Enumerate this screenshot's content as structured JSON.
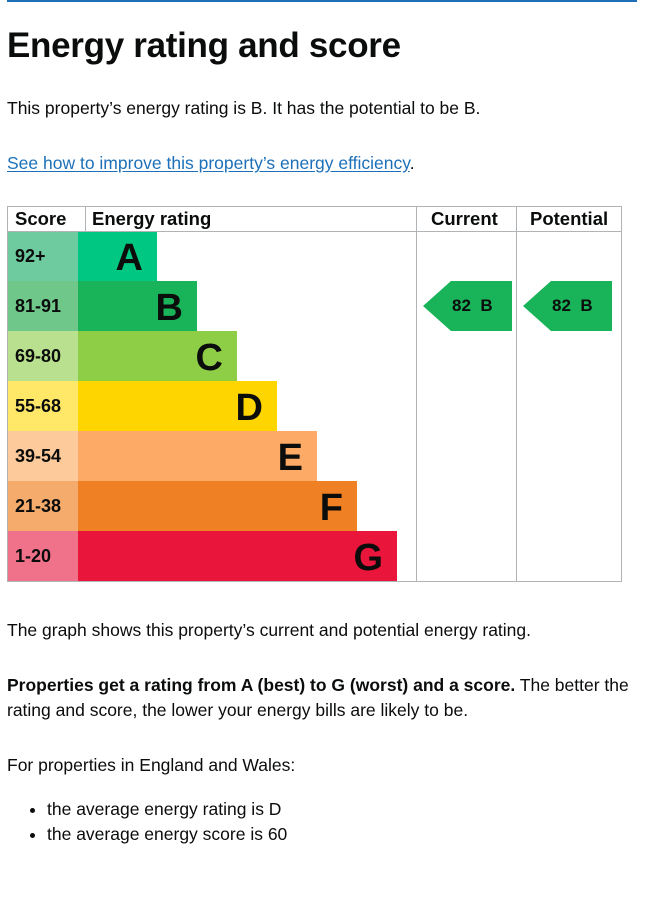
{
  "page": {
    "title": "Energy rating and score",
    "intro": "This property’s energy rating is B. It has the potential to be B.",
    "improve_link": "See how to improve this property’s energy efficiency",
    "improve_link_suffix": ".",
    "graph_note": "The graph shows this property’s current and potential energy rating.",
    "rating_bold": "Properties get a rating from A (best) to G (worst) and a score.",
    "rating_rest": " The better the rating and score, the lower your energy bills are likely to be.",
    "region_intro": "For properties in England and Wales:",
    "facts": [
      "the average energy rating is D",
      "the average energy score is 60"
    ]
  },
  "chart_data": {
    "type": "bar",
    "headers": {
      "score": "Score",
      "rating": "Energy rating",
      "current": "Current",
      "potential": "Potential"
    },
    "bands": [
      {
        "score": "92+",
        "letter": "A",
        "color": "#00c781",
        "score_bg": "#6ecba0"
      },
      {
        "score": "81-91",
        "letter": "B",
        "color": "#19b459",
        "score_bg": "#6fc88a"
      },
      {
        "score": "69-80",
        "letter": "C",
        "color": "#8dce46",
        "score_bg": "#b9e08e"
      },
      {
        "score": "55-68",
        "letter": "D",
        "color": "#ffd500",
        "score_bg": "#ffe767"
      },
      {
        "score": "39-54",
        "letter": "E",
        "color": "#fcaa65",
        "score_bg": "#fdca9c"
      },
      {
        "score": "21-38",
        "letter": "F",
        "color": "#ef8023",
        "score_bg": "#f5ab6b"
      },
      {
        "score": "1-20",
        "letter": "G",
        "color": "#e9153b",
        "score_bg": "#f0718a"
      }
    ],
    "current": {
      "score": 82,
      "letter": "B",
      "band_index": 1,
      "label": "82  B"
    },
    "potential": {
      "score": 82,
      "letter": "B",
      "band_index": 1,
      "label": "82  B"
    }
  }
}
